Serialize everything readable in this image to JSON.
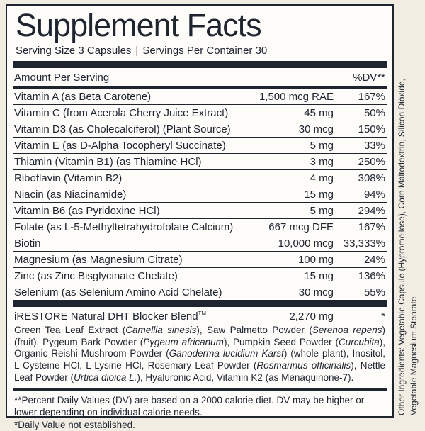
{
  "colors": {
    "ink": "#1d2531",
    "page_bg": "#f2ede3",
    "panel_bg": "#fdfcf9"
  },
  "panel": {
    "title": "Supplement Facts",
    "serving_size": "Serving Size 3 Capsules",
    "pipe": "|",
    "servings_per_container": "Servings Per Container 30"
  },
  "table": {
    "header": {
      "amount_label": "Amount Per Serving",
      "dv_label": "%DV**"
    },
    "rows": [
      {
        "name": "Vitamin A (as Beta Carotene)",
        "amount": "1,500 mcg RAE",
        "dv": "167%"
      },
      {
        "name": "Vitamin C (from Acerola Cherry Juice Extract)",
        "amount": "45 mg",
        "dv": "50%"
      },
      {
        "name": "Vitamin D3 (as Cholecalciferol) (Plant Source)",
        "amount": "30 mcg",
        "dv": "150%"
      },
      {
        "name": "Vitamin E (as D-Alpha Tocopheryl Succinate)",
        "amount": "5 mg",
        "dv": "33%"
      },
      {
        "name": "Thiamin (Vitamin B1) (as Thiamine HCl)",
        "amount": "3 mg",
        "dv": "250%"
      },
      {
        "name": "Riboflavin (Vitamin B2)",
        "amount": "4 mg",
        "dv": "308%"
      },
      {
        "name": "Niacin (as Niacinamide)",
        "amount": "15 mg",
        "dv": "94%"
      },
      {
        "name": "Vitamin B6 (as Pyridoxine HCl)",
        "amount": "5 mg",
        "dv": "294%"
      },
      {
        "name": "Folate (as L-5-Methyltetrahydrofolate Calcium)",
        "amount": "667 mcg DFE",
        "dv": "167%"
      },
      {
        "name": "Biotin",
        "amount": "10,000 mcg",
        "dv": "33,333%"
      },
      {
        "name": "Magnesium (as Magnesium Citrate)",
        "amount": "100 mg",
        "dv": "24%"
      },
      {
        "name": "Zinc (as Zinc Bisglycinate Chelate)",
        "amount": "15 mg",
        "dv": "136%"
      },
      {
        "name": "Selenium (as Selenium Amino Acid Chelate)",
        "amount": "30 mcg",
        "dv": "55%"
      }
    ]
  },
  "blend": {
    "name": "iRESTORE Natural DHT Blocker Blend",
    "trademark": "TM",
    "amount": "2,270 mg",
    "dv": "*",
    "description_segments": [
      {
        "t": "Green Tea Leaf Extract (",
        "i": false
      },
      {
        "t": "Camellia sinesis",
        "i": true
      },
      {
        "t": "), Saw Palmetto Powder (",
        "i": false
      },
      {
        "t": "Serenoa repens",
        "i": true
      },
      {
        "t": ") (fruit), Pygeum Bark Powder (",
        "i": false
      },
      {
        "t": "Pygeum africanum",
        "i": true
      },
      {
        "t": "), Pumpkin Seed Powder (",
        "i": false
      },
      {
        "t": "Curcubita",
        "i": true
      },
      {
        "t": "), Organic Reishi Mushroom Powder (",
        "i": false
      },
      {
        "t": "Ganoderma lucidium Karst",
        "i": true
      },
      {
        "t": ") (whole plant), Inositol, L-Cysteine HCl, L-Lysine HCl, Rosemary Leaf Powder (",
        "i": false
      },
      {
        "t": "Rosmarinus officinalis",
        "i": true
      },
      {
        "t": "), Nettle Leaf Powder (",
        "i": false
      },
      {
        "t": "Urtica dioica L.",
        "i": true
      },
      {
        "t": "), Hyaluronic Acid, Vitamin K2 (as Menaquinone-7).",
        "i": false
      }
    ]
  },
  "footnotes": {
    "daily_value": "**Percent Daily Values (DV) are based on a 2000 calorie diet. DV may be higher or lower depending on individual calorie needs.",
    "not_established": "*Daily Value not established."
  },
  "other_ingredients": {
    "line1": "Other Ingredients: Vegetable Capsule (Hypromellose), Corn Maltodextrin, Silicon Dioxide,",
    "line2": "Vegetable Magnesium Stearate"
  }
}
